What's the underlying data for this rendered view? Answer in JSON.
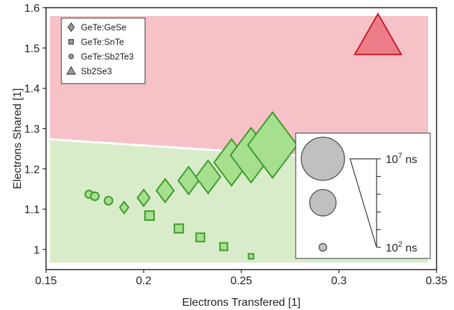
{
  "chart_data": {
    "type": "scatter",
    "title": "",
    "xlabel": "Electrons Transfered [1]",
    "ylabel": "Electrons Shared [1]",
    "xlim": [
      0.15,
      0.35
    ],
    "ylim": [
      0.95,
      1.6
    ],
    "xticks": [
      "0.15",
      "0.2",
      "0.25",
      "0.3",
      "0.35"
    ],
    "xtick_values": [
      0.15,
      0.2,
      0.25,
      0.3,
      0.35
    ],
    "yticks": [
      "1",
      "1.1",
      "1.2",
      "1.3",
      "1.4",
      "1.5",
      "1.6"
    ],
    "ytick_values": [
      1.0,
      1.1,
      1.2,
      1.3,
      1.4,
      1.5,
      1.6
    ],
    "grid": false,
    "legend_position": "top-left",
    "regions": [
      {
        "name": "upper",
        "color": "#f7c1c8",
        "boundary_start": [
          0.152,
          1.276
        ],
        "boundary_end": [
          0.35,
          1.214
        ]
      },
      {
        "name": "lower",
        "color": "#d8ecca"
      }
    ],
    "series": [
      {
        "name": "GeTe:GeSe",
        "marker": "diamond",
        "fill": "#a6df8e",
        "stroke": "#3c9a2a",
        "points": [
          {
            "x": 0.19,
            "y": 1.104,
            "time_ns": 100
          },
          {
            "x": 0.2,
            "y": 1.128,
            "time_ns": 1000
          },
          {
            "x": 0.211,
            "y": 1.146,
            "time_ns": 10000
          },
          {
            "x": 0.223,
            "y": 1.171,
            "time_ns": 30000
          },
          {
            "x": 0.233,
            "y": 1.18,
            "time_ns": 100000
          },
          {
            "x": 0.245,
            "y": 1.216,
            "time_ns": 1000000
          },
          {
            "x": 0.255,
            "y": 1.234,
            "time_ns": 3000000
          },
          {
            "x": 0.266,
            "y": 1.259,
            "time_ns": 10000000
          }
        ]
      },
      {
        "name": "GeTe:SnTe",
        "marker": "square",
        "fill": "#a6df8e",
        "stroke": "#3c9a2a",
        "points": [
          {
            "x": 0.203,
            "y": 1.084,
            "time_ns": 1000
          },
          {
            "x": 0.218,
            "y": 1.052,
            "time_ns": 800
          },
          {
            "x": 0.229,
            "y": 1.03,
            "time_ns": 600
          },
          {
            "x": 0.241,
            "y": 1.007,
            "time_ns": 300
          },
          {
            "x": 0.255,
            "y": 0.983,
            "time_ns": 20
          }
        ]
      },
      {
        "name": "GeTe:Sb2Te3",
        "marker": "circle",
        "fill": "#a6df8e",
        "stroke": "#3c9a2a",
        "points": [
          {
            "x": 0.172,
            "y": 1.137,
            "time_ns": 300
          },
          {
            "x": 0.175,
            "y": 1.132,
            "time_ns": 500
          },
          {
            "x": 0.182,
            "y": 1.121,
            "time_ns": 500
          }
        ]
      },
      {
        "name": "Sb2Se3",
        "marker": "triangle",
        "fill": "#ec7d88",
        "stroke": "#c51c28",
        "points": [
          {
            "x": 0.32,
            "y": 1.527,
            "time_ns": 1000000
          }
        ]
      }
    ],
    "size_legend": {
      "labels": [
        "10",
        "7",
        "ns",
        "10",
        "2",
        "ns"
      ],
      "top_label": {
        "base": "10",
        "exp": "7",
        "unit": "ns"
      },
      "bottom_label": {
        "base": "10",
        "exp": "2",
        "unit": "ns"
      },
      "circle_color": "#c0c0c0"
    }
  }
}
